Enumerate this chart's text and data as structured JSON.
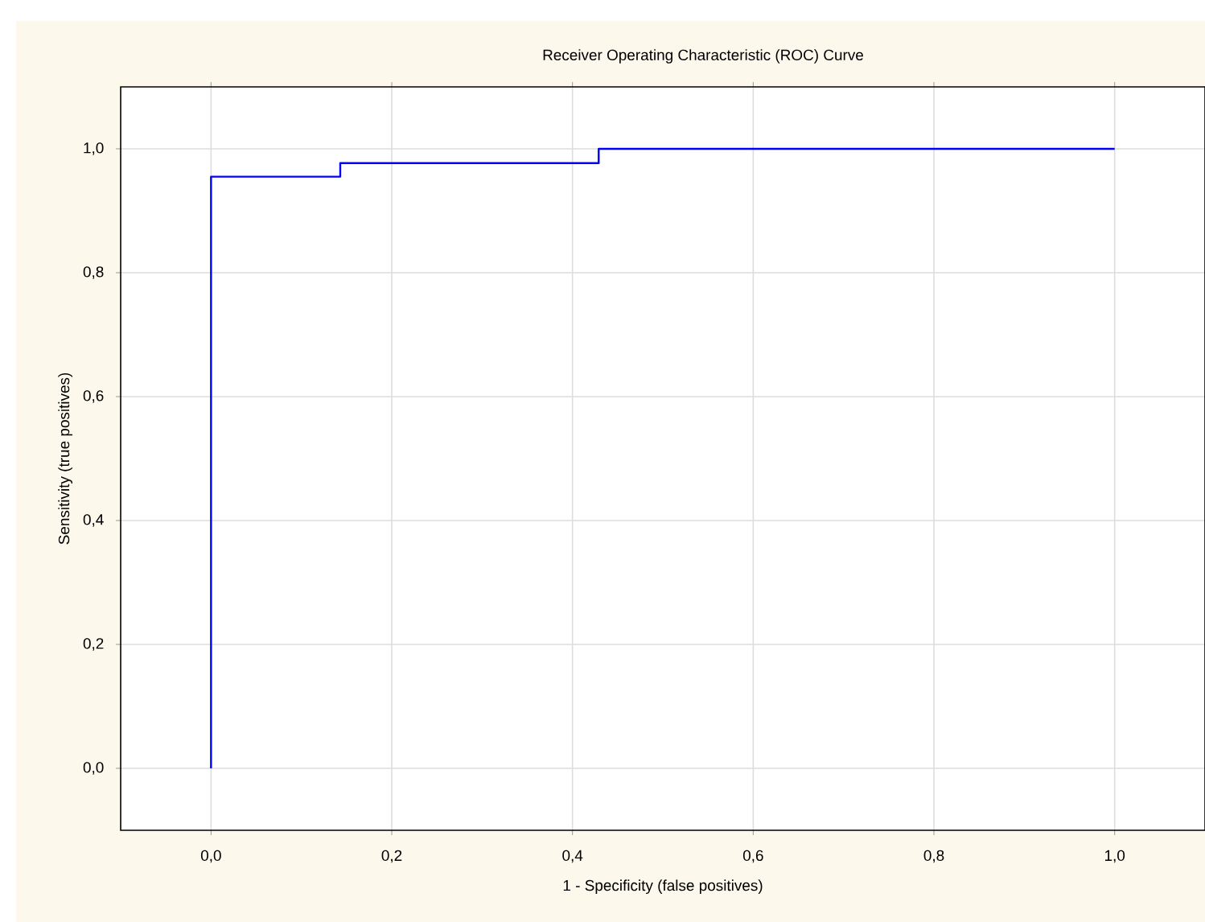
{
  "chart_data": {
    "type": "step",
    "title": "Receiver Operating Characteristic (ROC) Curve",
    "xlabel": "1 - Specificity (false positives)",
    "ylabel": "Sensitivity (true positives)",
    "x": [
      0,
      0,
      0.143,
      0.429,
      1.0
    ],
    "series": [
      {
        "color": "#0000ff",
        "values": [
          0,
          0.955,
          0.977,
          1.0,
          1.0
        ]
      }
    ],
    "xlim": [
      -0.1,
      1.1
    ],
    "ylim": [
      -0.1,
      1.1
    ],
    "xticks": [
      {
        "value": 0,
        "label": "0,0"
      },
      {
        "value": 0.2,
        "label": "0,2"
      },
      {
        "value": 0.4,
        "label": "0,4"
      },
      {
        "value": 0.6,
        "label": "0,6"
      },
      {
        "value": 0.8,
        "label": "0,8"
      },
      {
        "value": 1.0,
        "label": "1,0"
      }
    ],
    "yticks": [
      {
        "value": 0,
        "label": "0,0"
      },
      {
        "value": 0.2,
        "label": "0,2"
      },
      {
        "value": 0.4,
        "label": "0,4"
      },
      {
        "value": 0.6,
        "label": "0,6"
      },
      {
        "value": 0.8,
        "label": "0,8"
      },
      {
        "value": 1.0,
        "label": "1,0"
      }
    ],
    "grid": true
  }
}
